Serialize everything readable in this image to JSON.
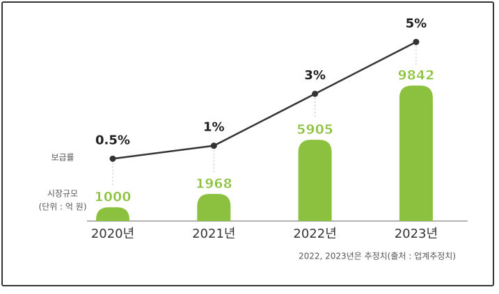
{
  "chart_data": {
    "type": "bar",
    "categories": [
      "2020년",
      "2021년",
      "2022년",
      "2023년"
    ],
    "series": [
      {
        "name": "시장규모",
        "type": "bar",
        "axis": "y",
        "color": "#8cc13f",
        "values": [
          1000,
          1968,
          5905,
          9842
        ]
      },
      {
        "name": "보급률",
        "type": "line",
        "axis": "y2",
        "color": "#333333",
        "values": [
          0.5,
          1,
          3,
          5
        ],
        "value_labels": [
          "0.5%",
          "1%",
          "3%",
          "5%"
        ]
      }
    ],
    "unit_label": "(단위 : 억 원)",
    "note": "2022, 2023년은 추정치(출처 : 업계추정치)",
    "ylim": [
      0,
      10000
    ],
    "y2lim": [
      0,
      6
    ]
  }
}
